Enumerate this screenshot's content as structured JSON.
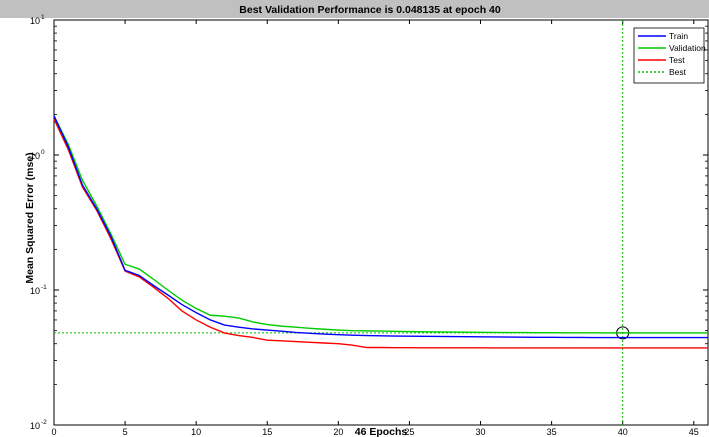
{
  "chart_data": {
    "type": "line",
    "title": "Best Validation Performance is 0.048135 at epoch 40",
    "xlabel": "46 Epochs",
    "ylabel": "Mean Squared Error  (mse)",
    "xlim": [
      0,
      46
    ],
    "ylim": [
      0.01,
      10
    ],
    "yscale": "log",
    "x_ticks": [
      "0",
      "5",
      "10",
      "15",
      "20",
      "25",
      "30",
      "35",
      "40",
      "45"
    ],
    "y_ticks": [
      {
        "base": "10",
        "exp": "-2"
      },
      {
        "base": "10",
        "exp": "-1"
      },
      {
        "base": "10",
        "exp": "0"
      },
      {
        "base": "10",
        "exp": "1"
      }
    ],
    "grid": false,
    "legend_position": "top-right",
    "x": [
      0,
      1,
      2,
      3,
      4,
      5,
      6,
      7,
      8,
      9,
      10,
      11,
      12,
      13,
      14,
      15,
      16,
      17,
      18,
      19,
      20,
      21,
      22,
      23,
      24,
      25,
      26,
      27,
      28,
      29,
      30,
      31,
      32,
      33,
      34,
      35,
      36,
      37,
      38,
      39,
      40,
      41,
      42,
      43,
      44,
      45,
      46
    ],
    "series": [
      {
        "name": "Train",
        "color": "#0000ff",
        "values": [
          1.95,
          1.15,
          0.6,
          0.4,
          0.25,
          0.14,
          0.128,
          0.108,
          0.092,
          0.078,
          0.068,
          0.06,
          0.055,
          0.053,
          0.0515,
          0.0505,
          0.0495,
          0.0485,
          0.0478,
          0.0472,
          0.0467,
          0.0463,
          0.046,
          0.0458,
          0.0456,
          0.0455,
          0.0454,
          0.0453,
          0.0452,
          0.0451,
          0.045,
          0.0449,
          0.0448,
          0.0447,
          0.0446,
          0.0446,
          0.0445,
          0.0445,
          0.0444,
          0.0444,
          0.0444,
          0.0444,
          0.0444,
          0.0444,
          0.0444,
          0.0444,
          0.0444
        ]
      },
      {
        "name": "Validation",
        "color": "#00cc00",
        "values": [
          1.95,
          1.2,
          0.65,
          0.42,
          0.26,
          0.155,
          0.143,
          0.12,
          0.1,
          0.084,
          0.073,
          0.065,
          0.064,
          0.062,
          0.058,
          0.0555,
          0.054,
          0.053,
          0.052,
          0.0512,
          0.0505,
          0.05,
          0.0498,
          0.0496,
          0.0494,
          0.0492,
          0.049,
          0.0489,
          0.0488,
          0.0487,
          0.0486,
          0.0485,
          0.0484,
          0.0484,
          0.0483,
          0.0483,
          0.0482,
          0.0482,
          0.0482,
          0.0481,
          0.048135,
          0.0481,
          0.0481,
          0.0481,
          0.0481,
          0.0481,
          0.0481
        ]
      },
      {
        "name": "Test",
        "color": "#ff0000",
        "values": [
          1.85,
          1.1,
          0.58,
          0.39,
          0.24,
          0.138,
          0.125,
          0.105,
          0.087,
          0.07,
          0.06,
          0.053,
          0.048,
          0.046,
          0.0445,
          0.0425,
          0.042,
          0.0415,
          0.041,
          0.0405,
          0.04,
          0.039,
          0.0375,
          0.0375,
          0.0374,
          0.0374,
          0.0373,
          0.0373,
          0.0373,
          0.0373,
          0.0373,
          0.0372,
          0.0372,
          0.0372,
          0.0372,
          0.0372,
          0.0372,
          0.0372,
          0.0372,
          0.0372,
          0.0372,
          0.0372,
          0.0372,
          0.0372,
          0.0372,
          0.0372,
          0.0372
        ]
      }
    ],
    "best": {
      "name": "Best",
      "epoch": 40,
      "value": 0.048135,
      "color": "#00bb00",
      "style": "dotted"
    },
    "background": "#ffffff",
    "title_bar_color": "#c0c0c0"
  }
}
